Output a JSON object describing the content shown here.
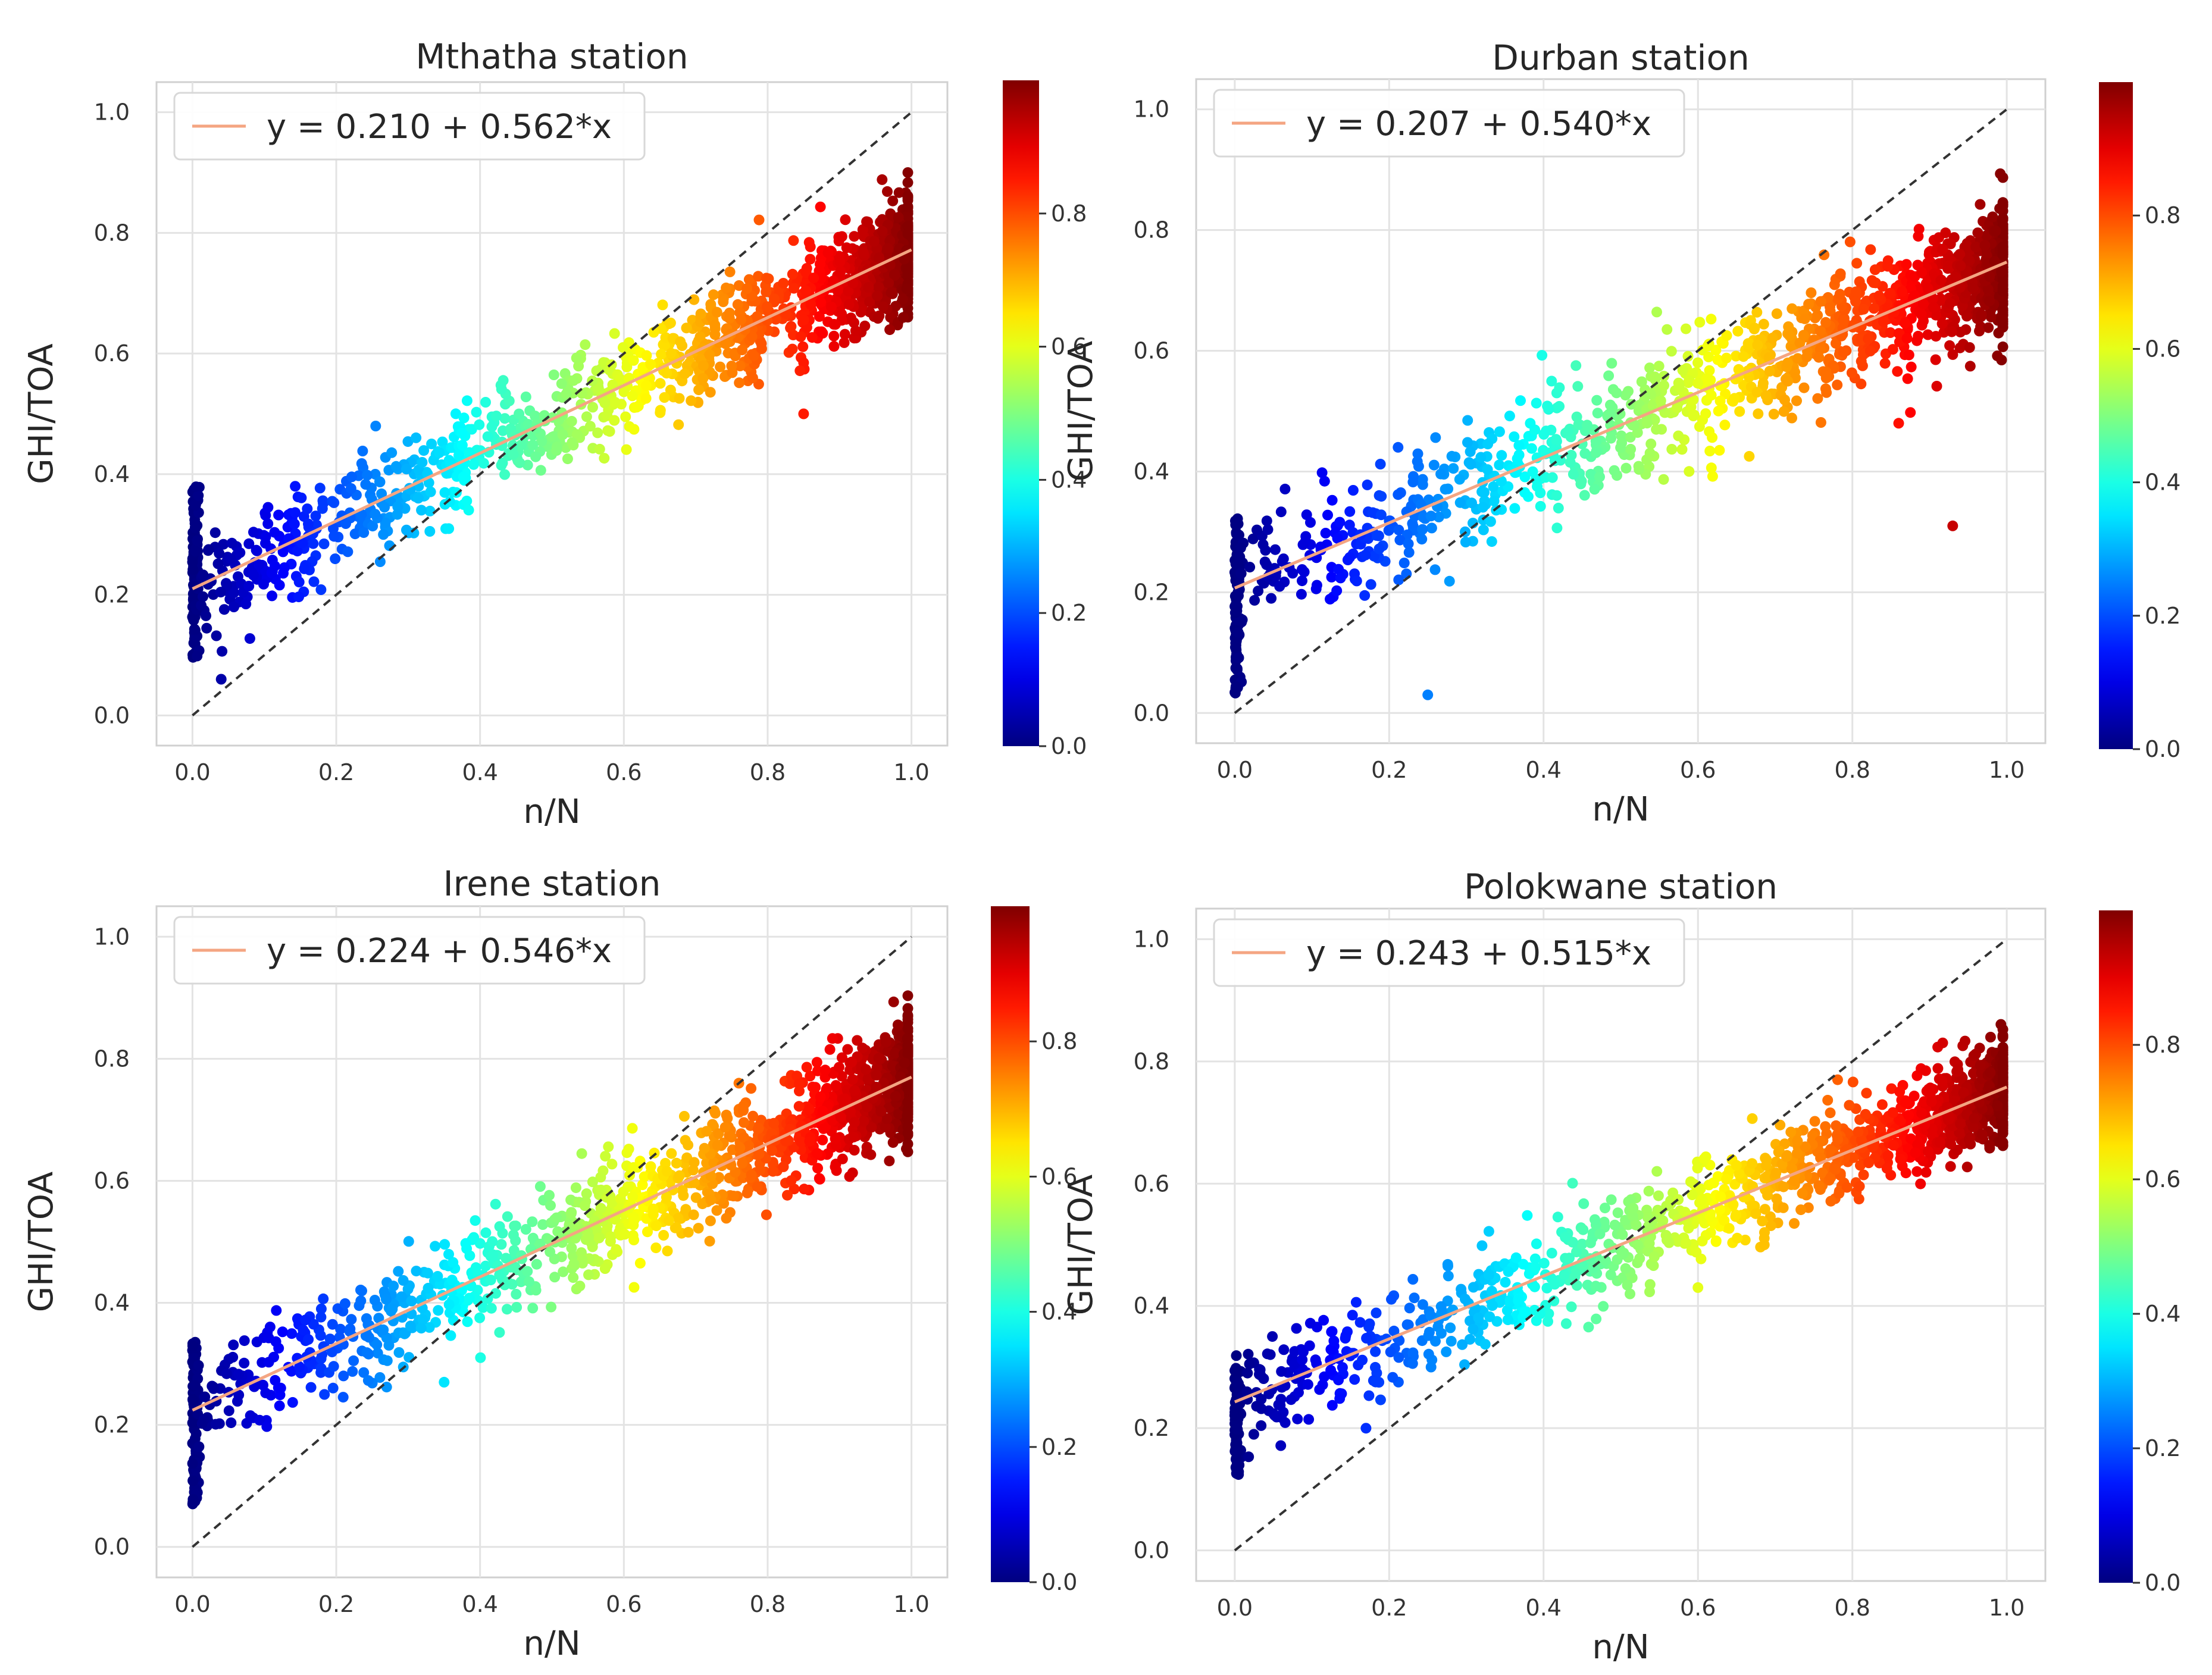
{
  "chart_data": [
    {
      "type": "scatter",
      "title": "Mthatha station",
      "xlabel": "n/N",
      "ylabel": "GHI/TOA",
      "xlim": [
        -0.05,
        1.05
      ],
      "ylim": [
        -0.05,
        1.05
      ],
      "xticks": [
        "0.0",
        "0.2",
        "0.4",
        "0.6",
        "0.8",
        "1.0"
      ],
      "yticks": [
        "0.0",
        "0.2",
        "0.4",
        "0.6",
        "0.8",
        "1.0"
      ],
      "colorbar": {
        "colormap": "jet",
        "range": [
          0,
          1
        ],
        "ticks": [
          "0.0",
          "0.2",
          "0.4",
          "0.6",
          "0.8"
        ]
      },
      "fit": {
        "intercept": 0.21,
        "slope": 0.562,
        "label": "y = 0.210 + 0.562*x",
        "color": "#f4a582"
      },
      "reference_line": {
        "type": "y=x",
        "style": "dashed",
        "color": "#333333"
      },
      "points": {
        "count": 1400,
        "spread": 0.045,
        "seed": 11,
        "color_by": "x",
        "zero_cluster_range": [
          0.09,
          0.38
        ],
        "outliers": [
          [
            0.85,
            0.5
          ],
          [
            0.04,
            0.06
          ]
        ]
      },
      "legend": "top-left"
    },
    {
      "type": "scatter",
      "title": "Durban station",
      "xlabel": "n/N",
      "ylabel": "GHI/TOA",
      "xlim": [
        -0.05,
        1.05
      ],
      "ylim": [
        -0.05,
        1.05
      ],
      "xticks": [
        "0.0",
        "0.2",
        "0.4",
        "0.6",
        "0.8",
        "1.0"
      ],
      "yticks": [
        "0.0",
        "0.2",
        "0.4",
        "0.6",
        "0.8",
        "1.0"
      ],
      "colorbar": {
        "colormap": "jet",
        "range": [
          0,
          1
        ],
        "ticks": [
          "0.0",
          "0.2",
          "0.4",
          "0.6",
          "0.8"
        ]
      },
      "fit": {
        "intercept": 0.207,
        "slope": 0.54,
        "label": "y = 0.207 + 0.540*x",
        "color": "#f4a582"
      },
      "reference_line": {
        "type": "y=x",
        "style": "dashed",
        "color": "#333333"
      },
      "points": {
        "count": 1400,
        "spread": 0.05,
        "seed": 23,
        "color_by": "x",
        "zero_cluster_range": [
          0.03,
          0.33
        ],
        "outliers": [
          [
            0.25,
            0.03
          ],
          [
            0.93,
            0.31
          ],
          [
            0.86,
            0.48
          ]
        ]
      },
      "legend": "top-left"
    },
    {
      "type": "scatter",
      "title": "Irene station",
      "xlabel": "n/N",
      "ylabel": "GHI/TOA",
      "xlim": [
        -0.05,
        1.05
      ],
      "ylim": [
        -0.05,
        1.05
      ],
      "xticks": [
        "0.0",
        "0.2",
        "0.4",
        "0.6",
        "0.8",
        "1.0"
      ],
      "yticks": [
        "0.0",
        "0.2",
        "0.4",
        "0.6",
        "0.8",
        "1.0"
      ],
      "colorbar": {
        "colormap": "jet",
        "range": [
          0,
          1
        ],
        "ticks": [
          "0.0",
          "0.2",
          "0.4",
          "0.6",
          "0.8"
        ]
      },
      "fit": {
        "intercept": 0.224,
        "slope": 0.546,
        "label": "y = 0.224 + 0.546*x",
        "color": "#f4a582"
      },
      "reference_line": {
        "type": "y=x",
        "style": "dashed",
        "color": "#333333"
      },
      "points": {
        "count": 1400,
        "spread": 0.045,
        "seed": 37,
        "color_by": "x",
        "zero_cluster_range": [
          0.07,
          0.34
        ],
        "outliers": [
          [
            0.76,
            0.76
          ],
          [
            0.35,
            0.27
          ]
        ]
      },
      "legend": "top-left"
    },
    {
      "type": "scatter",
      "title": "Polokwane station",
      "xlabel": "n/N",
      "ylabel": "GHI/TOA",
      "xlim": [
        -0.05,
        1.05
      ],
      "ylim": [
        -0.05,
        1.05
      ],
      "xticks": [
        "0.0",
        "0.2",
        "0.4",
        "0.6",
        "0.8",
        "1.0"
      ],
      "yticks": [
        "0.0",
        "0.2",
        "0.4",
        "0.6",
        "0.8",
        "1.0"
      ],
      "colorbar": {
        "colormap": "jet",
        "range": [
          0,
          1
        ],
        "ticks": [
          "0.0",
          "0.2",
          "0.4",
          "0.6",
          "0.8"
        ]
      },
      "fit": {
        "intercept": 0.243,
        "slope": 0.515,
        "label": "y = 0.243 + 0.515*x",
        "color": "#f4a582"
      },
      "reference_line": {
        "type": "y=x",
        "style": "dashed",
        "color": "#333333"
      },
      "points": {
        "count": 1400,
        "spread": 0.04,
        "seed": 53,
        "color_by": "x",
        "zero_cluster_range": [
          0.12,
          0.3
        ],
        "outliers": [
          [
            0.17,
            0.2
          ],
          [
            0.6,
            0.43
          ]
        ]
      },
      "legend": "top-left"
    }
  ]
}
